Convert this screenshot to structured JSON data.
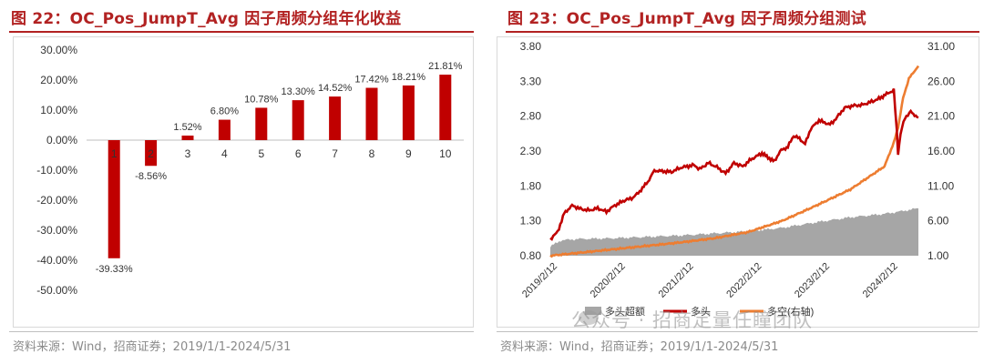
{
  "left": {
    "title": "图 22：OC_Pos_JumpT_Avg 因子周频分组年化收益",
    "source": "资料来源：Wind，招商证券；2019/1/1-2024/5/31"
  },
  "right": {
    "title": "图 23：OC_Pos_JumpT_Avg 因子周频分组测试",
    "source": "资料来源：Wind，招商证券；2019/1/1-2024/5/31",
    "watermark": "公众号 · 招商定量任瞳团队"
  },
  "colors": {
    "title_red": "#b22222",
    "bar_red": "#c00000",
    "long_line": "#c00000",
    "long_short_line": "#ed7d31",
    "excess_area": "#a6a6a6"
  },
  "chart_data": [
    {
      "type": "bar",
      "categories": [
        "1",
        "2",
        "3",
        "4",
        "5",
        "6",
        "7",
        "8",
        "9",
        "10"
      ],
      "values": [
        -39.33,
        -8.56,
        1.52,
        6.8,
        10.78,
        13.3,
        14.52,
        17.42,
        18.21,
        21.81
      ],
      "data_labels": [
        "-39.33%",
        "-8.56%",
        "1.52%",
        "6.80%",
        "10.78%",
        "13.30%",
        "14.52%",
        "17.42%",
        "18.21%",
        "21.81%"
      ],
      "ylim": [
        -50,
        30
      ],
      "yticks": [
        30,
        20,
        10,
        0,
        -10,
        -20,
        -30,
        -40,
        -50
      ],
      "ytick_labels": [
        "30.00%",
        "20.00%",
        "10.00%",
        "0.00%",
        "-10.00%",
        "-20.00%",
        "-30.00%",
        "-40.00%",
        "-50.00%"
      ],
      "grid": false,
      "legend": "none"
    },
    {
      "type": "line",
      "x_range": [
        "2019-01-04",
        "2024-05-31"
      ],
      "x_tick_labels": [
        "2019/2/12",
        "2020/2/12",
        "2021/2/12",
        "2022/2/12",
        "2023/2/12",
        "2024/2/12"
      ],
      "y_left_ticks": [
        "3.80",
        "3.30",
        "2.80",
        "2.30",
        "1.80",
        "1.30",
        "0.80"
      ],
      "y_left_lim": [
        0.8,
        3.8
      ],
      "y_right_ticks": [
        "31.00",
        "26.00",
        "21.00",
        "16.00",
        "11.00",
        "6.00",
        "1.00"
      ],
      "y_right_lim": [
        1,
        31
      ],
      "series": [
        {
          "name": "多头",
          "axis": "left",
          "color": "#c00000",
          "points": [
            [
              "2019-01-04",
              1.04
            ],
            [
              "2019-02-12",
              1.14
            ],
            [
              "2019-03-20",
              1.41
            ],
            [
              "2019-05-01",
              1.52
            ],
            [
              "2019-06-15",
              1.47
            ],
            [
              "2019-08-01",
              1.45
            ],
            [
              "2019-09-15",
              1.48
            ],
            [
              "2019-11-01",
              1.43
            ],
            [
              "2019-12-15",
              1.52
            ],
            [
              "2020-02-12",
              1.6
            ],
            [
              "2020-03-15",
              1.62
            ],
            [
              "2020-04-20",
              1.7
            ],
            [
              "2020-06-10",
              1.86
            ],
            [
              "2020-07-15",
              2.02
            ],
            [
              "2020-09-01",
              2.01
            ],
            [
              "2020-10-15",
              2.0
            ],
            [
              "2020-12-01",
              2.06
            ],
            [
              "2021-02-12",
              2.1
            ],
            [
              "2021-03-15",
              2.04
            ],
            [
              "2021-05-01",
              2.13
            ],
            [
              "2021-06-15",
              2.07
            ],
            [
              "2021-08-01",
              1.98
            ],
            [
              "2021-09-15",
              2.13
            ],
            [
              "2021-11-01",
              2.08
            ],
            [
              "2021-12-15",
              2.18
            ],
            [
              "2022-02-12",
              2.27
            ],
            [
              "2022-03-10",
              2.22
            ],
            [
              "2022-04-20",
              2.15
            ],
            [
              "2022-05-20",
              2.3
            ],
            [
              "2022-07-01",
              2.36
            ],
            [
              "2022-08-01",
              2.52
            ],
            [
              "2022-09-01",
              2.48
            ],
            [
              "2022-10-01",
              2.4
            ],
            [
              "2022-11-01",
              2.62
            ],
            [
              "2022-12-15",
              2.74
            ],
            [
              "2023-02-12",
              2.68
            ],
            [
              "2023-03-15",
              2.76
            ],
            [
              "2023-05-01",
              2.92
            ],
            [
              "2023-06-15",
              2.95
            ],
            [
              "2023-08-01",
              2.96
            ],
            [
              "2023-09-15",
              3.0
            ],
            [
              "2023-11-01",
              3.05
            ],
            [
              "2023-12-20",
              3.13
            ],
            [
              "2024-01-20",
              3.17
            ],
            [
              "2024-02-05",
              2.6
            ],
            [
              "2024-02-12",
              2.26
            ],
            [
              "2024-02-25",
              2.55
            ],
            [
              "2024-03-20",
              2.78
            ],
            [
              "2024-04-20",
              2.86
            ],
            [
              "2024-05-31",
              2.78
            ]
          ]
        },
        {
          "name": "多空(右轴)",
          "axis": "right",
          "color": "#ed7d31",
          "points": [
            [
              "2019-01-04",
              1.0
            ],
            [
              "2019-06-01",
              1.4
            ],
            [
              "2019-12-01",
              1.9
            ],
            [
              "2020-06-01",
              2.4
            ],
            [
              "2020-12-01",
              2.9
            ],
            [
              "2021-06-01",
              3.5
            ],
            [
              "2021-12-01",
              4.4
            ],
            [
              "2022-06-01",
              6.0
            ],
            [
              "2022-12-01",
              8.2
            ],
            [
              "2023-06-01",
              10.5
            ],
            [
              "2023-12-01",
              13.8
            ],
            [
              "2024-01-20",
              17.2
            ],
            [
              "2024-02-12",
              19.4
            ],
            [
              "2024-03-10",
              23.6
            ],
            [
              "2024-04-10",
              26.4
            ],
            [
              "2024-05-31",
              28.2
            ]
          ]
        },
        {
          "name": "多头超额",
          "axis": "left",
          "type": "area",
          "color": "#a6a6a6",
          "points": [
            [
              "2019-01-04",
              0.93
            ],
            [
              "2019-03-01",
              1.02
            ],
            [
              "2019-06-01",
              1.04
            ],
            [
              "2019-12-01",
              1.05
            ],
            [
              "2020-06-01",
              1.07
            ],
            [
              "2020-12-01",
              1.09
            ],
            [
              "2021-06-01",
              1.12
            ],
            [
              "2021-12-01",
              1.15
            ],
            [
              "2022-06-01",
              1.2
            ],
            [
              "2022-12-01",
              1.28
            ],
            [
              "2023-06-01",
              1.35
            ],
            [
              "2023-12-01",
              1.4
            ],
            [
              "2024-02-12",
              1.43
            ],
            [
              "2024-05-31",
              1.48
            ]
          ]
        }
      ],
      "legend_entries": [
        "多头超额",
        "多头",
        "多空(右轴)"
      ],
      "legend": "bottom",
      "grid": false
    }
  ]
}
